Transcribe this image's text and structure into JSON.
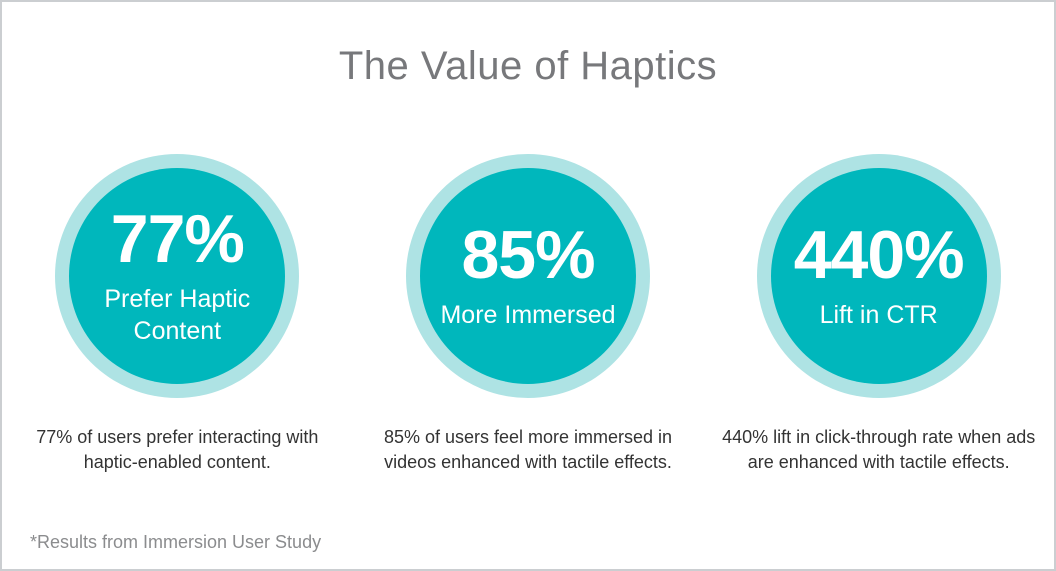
{
  "title": "The Value of Haptics",
  "footnote": "*Results from Immersion User Study",
  "colors": {
    "circle_fill": "#00b7bc",
    "circle_ring": "#aee3e4",
    "title_text": "#77787b",
    "description_text": "#333333",
    "footnote_text": "#8b8c8e",
    "card_border": "#cbced1",
    "background": "#ffffff",
    "stat_text": "#ffffff"
  },
  "stats": [
    {
      "value": "77%",
      "label": "Prefer Haptic Content",
      "description": "77% of users prefer interacting with haptic-enabled content."
    },
    {
      "value": "85%",
      "label": "More Immersed",
      "description": "85% of users feel more immersed in videos enhanced with tactile effects."
    },
    {
      "value": "440%",
      "label": "Lift in CTR",
      "description": "440% lift in click-through rate when ads are enhanced with tactile effects."
    }
  ],
  "chart_data": {
    "type": "table",
    "title": "The Value of Haptics",
    "categories": [
      "Prefer Haptic Content",
      "More Immersed",
      "Lift in CTR"
    ],
    "values": [
      77,
      85,
      440
    ],
    "unit": "%",
    "annotations": [
      "77% of users prefer interacting with haptic-enabled content.",
      "85% of users feel more immersed in videos enhanced with tactile effects.",
      "440% lift in click-through rate when ads are enhanced with tactile effects.",
      "*Results from Immersion User Study"
    ],
    "legend_position": "none",
    "grid": false
  }
}
